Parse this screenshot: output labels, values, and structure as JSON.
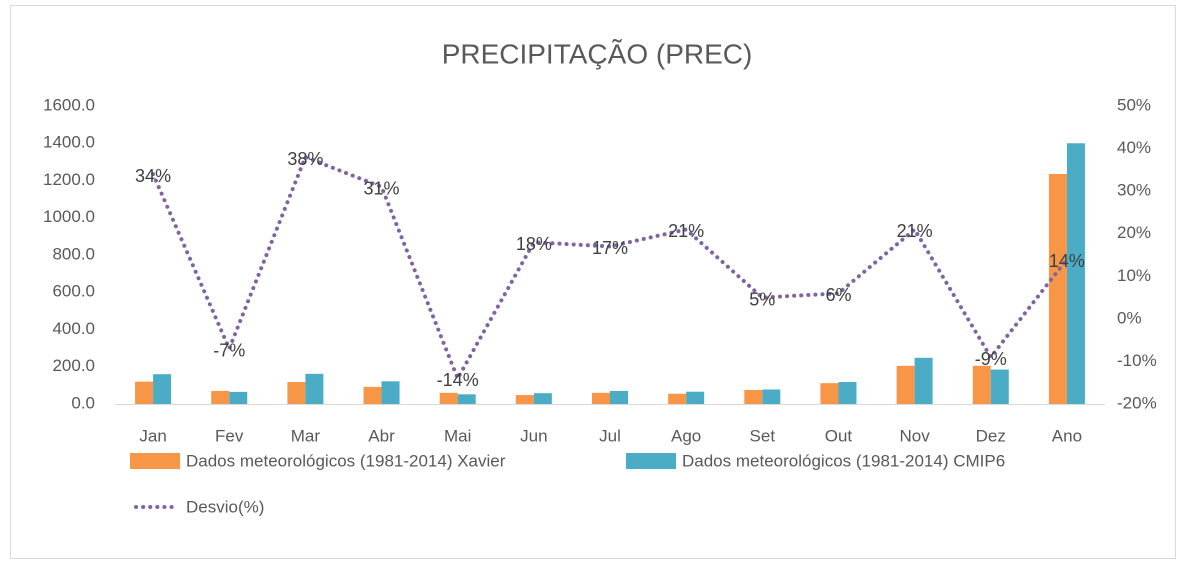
{
  "chart_data": {
    "type": "bar",
    "title": "PRECIPITAÇÃO (PREC)",
    "categories": [
      "Jan",
      "Fev",
      "Mar",
      "Abr",
      "Mai",
      "Jun",
      "Jul",
      "Ago",
      "Set",
      "Out",
      "Nov",
      "Dez",
      "Ano"
    ],
    "series": [
      {
        "name": "Dados meteorológicos (1981-2014) Xavier",
        "color": "#f79646",
        "values": [
          120,
          70,
          118,
          92,
          60,
          48,
          60,
          55,
          75,
          112,
          205,
          205,
          1235
        ]
      },
      {
        "name": "Dados meteorológicos (1981-2014) CMIP6",
        "color": "#4bacc6",
        "values": [
          160,
          65,
          162,
          122,
          52,
          58,
          70,
          66,
          78,
          118,
          248,
          185,
          1400
        ]
      },
      {
        "name": "Desvio(%)",
        "color": "#8064a2",
        "type": "line",
        "axis": "y2",
        "values": [
          34,
          -7,
          38,
          31,
          -14,
          18,
          17,
          21,
          5,
          6,
          21,
          -9,
          14
        ],
        "value_labels": [
          "34%",
          "-7%",
          "38%",
          "31%",
          "-14%",
          "18%",
          "17%",
          "21%",
          "5%",
          "6%",
          "21%",
          "-9%",
          "14%"
        ]
      }
    ],
    "ylim": [
      0,
      1600
    ],
    "yticks": [
      {
        "value": 0,
        "label": "0.0"
      },
      {
        "value": 200,
        "label": "200.0"
      },
      {
        "value": 400,
        "label": "400.0"
      },
      {
        "value": 600,
        "label": "600.0"
      },
      {
        "value": 800,
        "label": "800.0"
      },
      {
        "value": 1000,
        "label": "1000.0"
      },
      {
        "value": 1200,
        "label": "1200.0"
      },
      {
        "value": 1400,
        "label": "1400.0"
      },
      {
        "value": 1600,
        "label": "1600.0"
      }
    ],
    "y2lim": [
      -20,
      50
    ],
    "y2ticks": [
      {
        "value": -20,
        "label": "-20%"
      },
      {
        "value": -10,
        "label": "-10%"
      },
      {
        "value": 0,
        "label": "0%"
      },
      {
        "value": 10,
        "label": "10%"
      },
      {
        "value": 20,
        "label": "20%"
      },
      {
        "value": 30,
        "label": "30%"
      },
      {
        "value": 40,
        "label": "40%"
      },
      {
        "value": 50,
        "label": "50%"
      }
    ],
    "grid": false,
    "legend": "bottom"
  }
}
